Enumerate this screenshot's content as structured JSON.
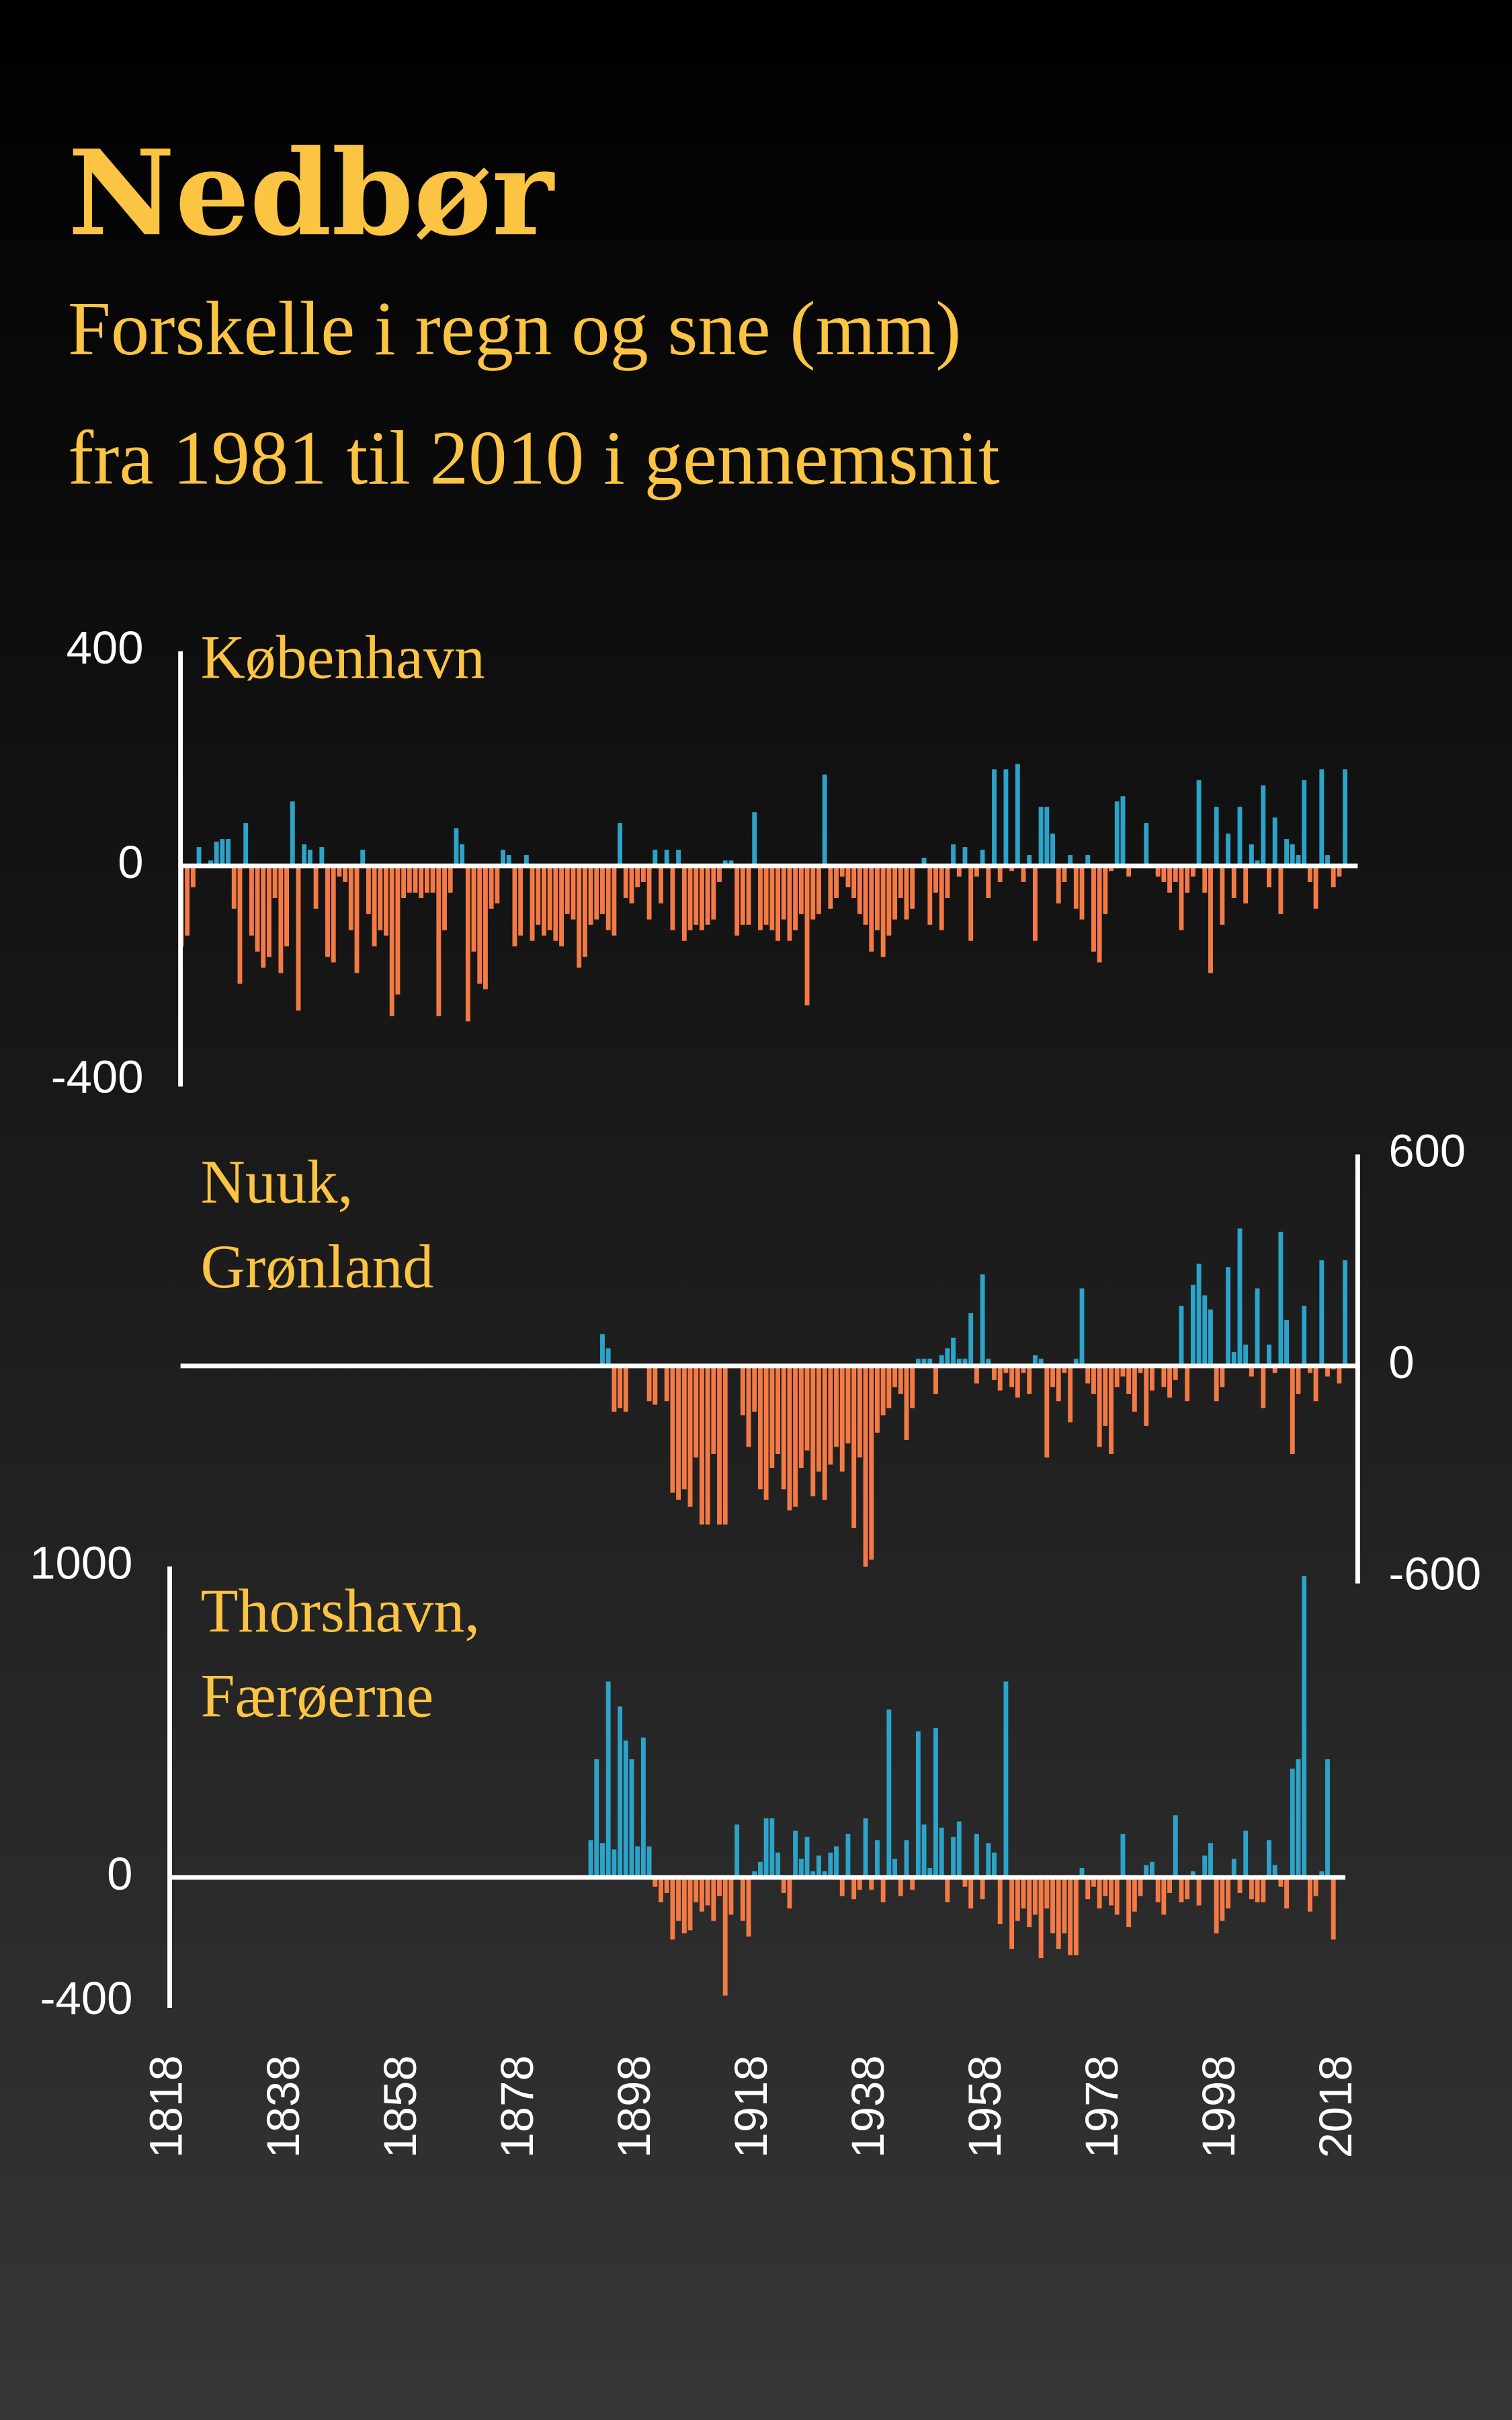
{
  "title": "Nedbør",
  "subtitle": [
    "Forskelle i regn og sne (mm)",
    "fra 1981 til 2010 i gennemsnit"
  ],
  "chart_data": [
    {
      "type": "bar",
      "title": [
        "København"
      ],
      "positive_color": "#2ca3c8",
      "negative_color": "#f47a45",
      "xlim": [
        1818,
        2020
      ],
      "ylim": [
        -400,
        400
      ],
      "yticks": [
        -400,
        0,
        400
      ],
      "axis_side": "left",
      "x": [
        1820,
        1821,
        1822,
        1823,
        1824,
        1825,
        1826,
        1827,
        1828,
        1829,
        1830,
        1831,
        1832,
        1833,
        1834,
        1835,
        1836,
        1837,
        1838,
        1839,
        1840,
        1841,
        1842,
        1843,
        1844,
        1845,
        1846,
        1847,
        1848,
        1849,
        1850,
        1851,
        1852,
        1853,
        1854,
        1855,
        1856,
        1857,
        1858,
        1859,
        1860,
        1861,
        1862,
        1863,
        1864,
        1865,
        1866,
        1867,
        1868,
        1869,
        1870,
        1871,
        1872,
        1873,
        1874,
        1875,
        1876,
        1877,
        1878,
        1879,
        1880,
        1881,
        1882,
        1883,
        1884,
        1885,
        1886,
        1887,
        1888,
        1889,
        1890,
        1891,
        1892,
        1893,
        1894,
        1895,
        1896,
        1897,
        1898,
        1899,
        1900,
        1901,
        1902,
        1903,
        1904,
        1905,
        1906,
        1907,
        1908,
        1909,
        1910,
        1911,
        1912,
        1913,
        1914,
        1915,
        1916,
        1917,
        1918,
        1919,
        1920,
        1921,
        1922,
        1923,
        1924,
        1925,
        1926,
        1927,
        1928,
        1929,
        1930,
        1931,
        1932,
        1933,
        1934,
        1935,
        1936,
        1937,
        1938,
        1939,
        1940,
        1941,
        1942,
        1943,
        1944,
        1945,
        1946,
        1947,
        1948,
        1949,
        1950,
        1951,
        1952,
        1953,
        1954,
        1955,
        1956,
        1957,
        1958,
        1959,
        1960,
        1961,
        1962,
        1963,
        1964,
        1965,
        1966,
        1967,
        1968,
        1969,
        1970,
        1971,
        1972,
        1973,
        1974,
        1975,
        1976,
        1977,
        1978,
        1979,
        1980,
        1981,
        1982,
        1983,
        1984,
        1985,
        1986,
        1987,
        1988,
        1989,
        1990,
        1991,
        1992,
        1993,
        1994,
        1995,
        1996,
        1997,
        1998,
        1999,
        2000,
        2001,
        2002,
        2003,
        2004,
        2005,
        2006,
        2007,
        2008,
        2009,
        2010,
        2011,
        2012,
        2013,
        2014,
        2015,
        2016,
        2017,
        2018,
        2019
      ],
      "values": [
        -150,
        -130,
        -40,
        35,
        0,
        10,
        45,
        50,
        50,
        -80,
        -220,
        80,
        -130,
        -160,
        -190,
        -170,
        -60,
        -200,
        -150,
        120,
        -270,
        40,
        30,
        -80,
        35,
        -170,
        -180,
        -20,
        -30,
        -120,
        -200,
        30,
        -90,
        -150,
        -120,
        -130,
        -280,
        -240,
        -60,
        -50,
        -50,
        -60,
        -50,
        -50,
        -280,
        -120,
        -50,
        70,
        40,
        -290,
        -160,
        -220,
        -230,
        -80,
        -70,
        30,
        20,
        -150,
        -130,
        20,
        -140,
        -110,
        -130,
        -120,
        -140,
        -150,
        -90,
        -100,
        -190,
        -170,
        -110,
        -100,
        -90,
        -120,
        -130,
        80,
        -60,
        -70,
        -40,
        -30,
        -100,
        30,
        -70,
        30,
        -120,
        30,
        -140,
        -120,
        -110,
        -120,
        -110,
        -100,
        -30,
        10,
        10,
        -130,
        -110,
        -110,
        100,
        -120,
        -110,
        -120,
        -140,
        -100,
        -140,
        -120,
        -90,
        -260,
        -100,
        -90,
        170,
        -80,
        -60,
        -20,
        -40,
        -60,
        -90,
        -110,
        -160,
        -120,
        -170,
        -130,
        -100,
        -60,
        -100,
        -80,
        0,
        15,
        -110,
        -50,
        -120,
        -60,
        40,
        -20,
        35,
        -140,
        -20,
        30,
        -60,
        180,
        -30,
        180,
        -10,
        190,
        -30,
        20,
        -140,
        110,
        110,
        60,
        -70,
        -30,
        20,
        -80,
        -100,
        20,
        -160,
        -180,
        -90,
        -10,
        120,
        130,
        -20,
        0,
        0,
        80,
        0,
        -20,
        -30,
        -50,
        -30,
        -120,
        -50,
        -20,
        160,
        -50,
        -200,
        110,
        -110,
        60,
        -60,
        110,
        -70,
        40,
        10,
        150,
        -40,
        90,
        -90,
        50,
        40,
        20,
        160,
        -30,
        -80,
        180,
        20,
        -40,
        -20,
        180
      ]
    },
    {
      "type": "bar",
      "title": [
        "Nuuk,",
        "Grønland"
      ],
      "positive_color": "#2ca3c8",
      "negative_color": "#f47a45",
      "xlim": [
        1818,
        2020
      ],
      "ylim": [
        -600,
        600
      ],
      "yticks": [
        -600,
        0,
        600
      ],
      "axis_side": "right",
      "x": [
        1890,
        1891,
        1892,
        1893,
        1894,
        1895,
        1896,
        1897,
        1898,
        1899,
        1900,
        1901,
        1902,
        1903,
        1904,
        1905,
        1906,
        1907,
        1908,
        1909,
        1910,
        1911,
        1912,
        1913,
        1914,
        1915,
        1916,
        1917,
        1918,
        1919,
        1920,
        1921,
        1922,
        1923,
        1924,
        1925,
        1926,
        1927,
        1928,
        1929,
        1930,
        1931,
        1932,
        1933,
        1934,
        1935,
        1936,
        1937,
        1938,
        1939,
        1940,
        1941,
        1942,
        1943,
        1944,
        1945,
        1946,
        1947,
        1948,
        1949,
        1950,
        1951,
        1952,
        1953,
        1954,
        1955,
        1956,
        1957,
        1958,
        1959,
        1960,
        1961,
        1962,
        1963,
        1964,
        1965,
        1966,
        1967,
        1968,
        1969,
        1970,
        1971,
        1972,
        1973,
        1974,
        1975,
        1976,
        1977,
        1978,
        1979,
        1980,
        1981,
        1982,
        1983,
        1984,
        1985,
        1986,
        1987,
        1988,
        1989,
        1990,
        1991,
        1992,
        1993,
        1994,
        1995,
        1996,
        1997,
        1998,
        1999,
        2000,
        2001,
        2002,
        2003,
        2004,
        2005,
        2006,
        2007,
        2008,
        2009,
        2010,
        2011,
        2012,
        2013,
        2014,
        2015,
        2016,
        2017,
        2018,
        2019
      ],
      "values": [
        null,
        null,
        90,
        50,
        -130,
        -120,
        -130,
        null,
        null,
        null,
        -100,
        -110,
        null,
        -100,
        -360,
        -380,
        -350,
        -400,
        -260,
        -450,
        -450,
        -250,
        -450,
        -450,
        null,
        null,
        -140,
        -230,
        -130,
        -350,
        -380,
        -290,
        -250,
        -350,
        -410,
        -400,
        -290,
        -240,
        -370,
        -300,
        -380,
        -280,
        -230,
        -300,
        -220,
        -460,
        -260,
        -570,
        -550,
        -190,
        -140,
        -120,
        -60,
        -80,
        -210,
        -120,
        20,
        20,
        20,
        -80,
        30,
        50,
        80,
        20,
        20,
        150,
        -50,
        260,
        20,
        -40,
        -70,
        -20,
        -60,
        -90,
        -20,
        -80,
        30,
        20,
        -260,
        -60,
        -100,
        -20,
        -160,
        20,
        220,
        -50,
        -80,
        -230,
        -170,
        -250,
        -60,
        -30,
        -80,
        -130,
        -20,
        -170,
        -70,
        0,
        -60,
        -90,
        -40,
        170,
        -100,
        230,
        290,
        200,
        160,
        -100,
        -60,
        280,
        40,
        390,
        60,
        -30,
        220,
        -120,
        60,
        -20,
        380,
        130,
        -250,
        -80,
        170,
        -20,
        -100,
        300,
        -30,
        -10,
        -50,
        300
      ]
    },
    {
      "type": "bar",
      "title": [
        "Thorshavn,",
        "Færøerne"
      ],
      "positive_color": "#2ca3c8",
      "negative_color": "#f47a45",
      "xlim": [
        1818,
        2020
      ],
      "ylim": [
        -400,
        1000
      ],
      "yticks": [
        -400,
        0,
        1000
      ],
      "axis_side": "left",
      "xticks": [
        1818,
        1838,
        1858,
        1878,
        1898,
        1918,
        1938,
        1958,
        1978,
        1998,
        2018
      ],
      "x": [
        1890,
        1891,
        1892,
        1893,
        1894,
        1895,
        1896,
        1897,
        1898,
        1899,
        1900,
        1901,
        1902,
        1903,
        1904,
        1905,
        1906,
        1907,
        1908,
        1909,
        1910,
        1911,
        1912,
        1913,
        1914,
        1915,
        1916,
        1917,
        1918,
        1919,
        1920,
        1921,
        1922,
        1923,
        1924,
        1925,
        1926,
        1927,
        1928,
        1929,
        1930,
        1931,
        1932,
        1933,
        1934,
        1935,
        1936,
        1937,
        1938,
        1939,
        1940,
        1941,
        1942,
        1943,
        1944,
        1945,
        1946,
        1947,
        1948,
        1949,
        1950,
        1951,
        1952,
        1953,
        1954,
        1955,
        1956,
        1957,
        1958,
        1959,
        1960,
        1961,
        1962,
        1963,
        1964,
        1965,
        1966,
        1967,
        1968,
        1969,
        1970,
        1971,
        1972,
        1973,
        1974,
        1975,
        1976,
        1977,
        1978,
        1979,
        1980,
        1981,
        1982,
        1983,
        1984,
        1985,
        1986,
        1987,
        1988,
        1989,
        1990,
        1991,
        1992,
        1993,
        1994,
        1995,
        1996,
        1997,
        1998,
        1999,
        2000,
        2001,
        2002,
        2003,
        2004,
        2005,
        2006,
        2007,
        2008,
        2009,
        2010,
        2011,
        2012,
        2013,
        2014,
        2015,
        2016,
        2017
      ],
      "values": [
        120,
        380,
        110,
        630,
        90,
        550,
        440,
        380,
        100,
        450,
        100,
        -30,
        -80,
        -50,
        -200,
        -140,
        -180,
        -170,
        -80,
        -110,
        -90,
        -140,
        -60,
        -380,
        -120,
        170,
        -140,
        -190,
        20,
        50,
        190,
        190,
        80,
        -50,
        -100,
        150,
        60,
        130,
        20,
        70,
        20,
        80,
        100,
        -60,
        140,
        -70,
        -40,
        190,
        -40,
        120,
        -80,
        540,
        60,
        -60,
        120,
        -40,
        470,
        170,
        30,
        480,
        160,
        -80,
        130,
        180,
        -30,
        -100,
        140,
        -70,
        110,
        80,
        -150,
        630,
        -230,
        -140,
        -100,
        -160,
        -120,
        -260,
        -100,
        -180,
        -230,
        -180,
        -250,
        -250,
        30,
        -70,
        -30,
        -100,
        -60,
        -90,
        -120,
        140,
        -160,
        -110,
        -60,
        40,
        50,
        -80,
        -120,
        -50,
        200,
        -80,
        -70,
        20,
        -90,
        70,
        110,
        -180,
        -140,
        -100,
        60,
        -50,
        150,
        -70,
        -80,
        -80,
        120,
        40,
        -30,
        -100,
        350,
        380,
        970,
        -110,
        -60,
        20,
        380,
        -200
      ]
    }
  ]
}
